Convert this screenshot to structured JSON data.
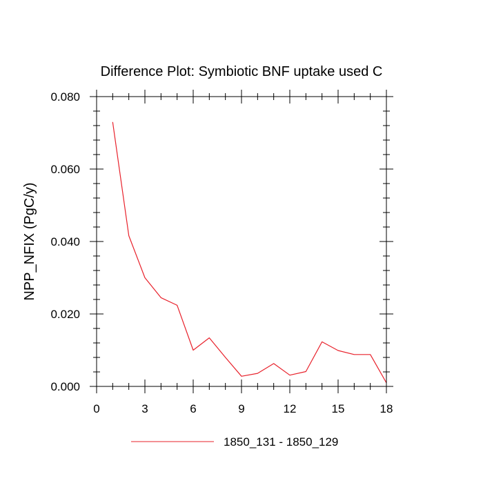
{
  "chart_data": {
    "type": "line",
    "title": "Difference Plot: Symbiotic BNF uptake used C",
    "xlabel": "",
    "ylabel": "NPP_NFIX  (PgC/y)",
    "xlim": [
      0,
      18
    ],
    "ylim": [
      0.0,
      0.08
    ],
    "x_ticks": [
      0,
      3,
      6,
      9,
      12,
      15,
      18
    ],
    "x_tick_labels": [
      "0",
      "3",
      "6",
      "9",
      "12",
      "15",
      "18"
    ],
    "y_ticks": [
      0.0,
      0.02,
      0.04,
      0.06,
      0.08
    ],
    "y_tick_labels": [
      "0.000",
      "0.020",
      "0.040",
      "0.060",
      "0.080"
    ],
    "grid": false,
    "legend_position": "bottom",
    "series": [
      {
        "name": "1850_131 - 1850_129",
        "color": "#e8202a",
        "x": [
          1,
          2,
          3,
          4,
          5,
          6,
          7,
          8,
          9,
          10,
          11,
          12,
          13,
          14,
          15,
          16,
          17,
          18
        ],
        "y": [
          0.073,
          0.0416,
          0.03,
          0.0245,
          0.0224,
          0.01,
          0.0134,
          0.008,
          0.0028,
          0.0036,
          0.0063,
          0.0031,
          0.0041,
          0.0123,
          0.0099,
          0.0088,
          0.0088,
          0.001
        ]
      }
    ]
  }
}
